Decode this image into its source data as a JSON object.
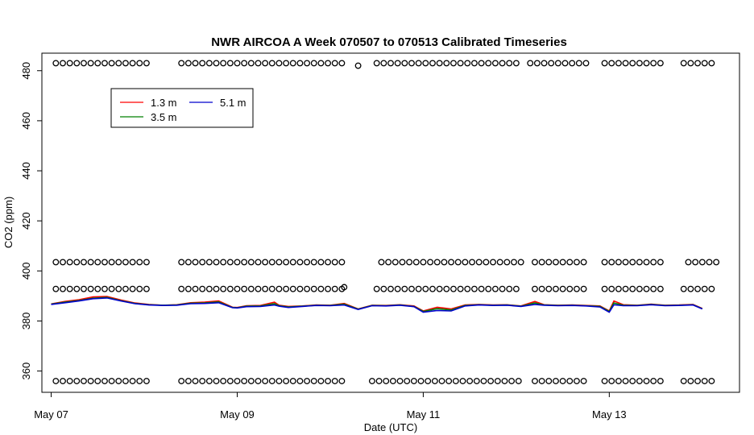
{
  "chart_data": {
    "type": "line",
    "title": "NWR AIRCOA A  Week 070507 to 070513  Calibrated Timeseries",
    "xlabel": "Date (UTC)",
    "ylabel": "CO2 (ppm)",
    "x_unit": "days",
    "xlim": [
      -0.1,
      7.4
    ],
    "ylim": [
      351.5,
      487
    ],
    "x_ticks": [
      {
        "value": 0,
        "label": "May 07"
      },
      {
        "value": 2,
        "label": "May 09"
      },
      {
        "value": 4,
        "label": "May 11"
      },
      {
        "value": 6,
        "label": "May 13"
      }
    ],
    "y_ticks": [
      360,
      380,
      400,
      420,
      440,
      460,
      480
    ],
    "grid": false,
    "legend": {
      "position": "top-left",
      "entries": [
        {
          "name": "1.3 m",
          "color": "#ff0000"
        },
        {
          "name": "5.1 m",
          "color": "#0000cc"
        },
        {
          "name": "3.5 m",
          "color": "#008000"
        }
      ]
    },
    "series": [
      {
        "name": "1.3 m",
        "color": "#ff0000",
        "x": [
          0,
          0.15,
          0.3,
          0.45,
          0.6,
          0.75,
          0.9,
          1.05,
          1.2,
          1.35,
          1.5,
          1.65,
          1.8,
          1.95,
          2.0,
          2.1,
          2.25,
          2.4,
          2.45,
          2.55,
          2.7,
          2.85,
          3.0,
          3.15,
          3.3,
          3.45,
          3.6,
          3.75,
          3.9,
          4.0,
          4.15,
          4.3,
          4.45,
          4.6,
          4.75,
          4.9,
          5.05,
          5.2,
          5.3,
          5.45,
          5.6,
          5.75,
          5.9,
          6.0,
          6.05,
          6.15,
          6.3,
          6.45,
          6.6,
          6.75,
          6.9,
          7.0
        ],
        "values": [
          386.8,
          387.8,
          388.5,
          389.6,
          389.8,
          388.4,
          387.2,
          386.6,
          386.3,
          386.5,
          387.3,
          387.5,
          388.0,
          385.5,
          385.4,
          386.1,
          386.2,
          387.5,
          386.3,
          385.8,
          386.0,
          386.4,
          386.3,
          387.0,
          384.8,
          386.3,
          386.2,
          386.5,
          386.0,
          384.0,
          385.5,
          384.8,
          386.4,
          386.6,
          386.4,
          386.5,
          386.0,
          387.8,
          386.5,
          386.3,
          386.4,
          386.2,
          386.0,
          384.0,
          388.0,
          386.5,
          386.3,
          386.7,
          386.3,
          386.4,
          386.6,
          385.0
        ]
      },
      {
        "name": "3.5 m",
        "color": "#008000",
        "x": [
          0,
          0.15,
          0.3,
          0.45,
          0.6,
          0.75,
          0.9,
          1.05,
          1.2,
          1.35,
          1.5,
          1.65,
          1.8,
          1.95,
          2.0,
          2.1,
          2.25,
          2.4,
          2.45,
          2.55,
          2.7,
          2.85,
          3.0,
          3.15,
          3.3,
          3.45,
          3.6,
          3.75,
          3.9,
          4.0,
          4.15,
          4.3,
          4.45,
          4.6,
          4.75,
          4.9,
          5.05,
          5.2,
          5.3,
          5.45,
          5.6,
          5.75,
          5.9,
          6.0,
          6.05,
          6.15,
          6.3,
          6.45,
          6.6,
          6.75,
          6.9,
          7.0
        ],
        "values": [
          386.7,
          387.5,
          388.2,
          389.1,
          389.4,
          388.1,
          387.0,
          386.5,
          386.3,
          386.4,
          387.1,
          387.2,
          387.6,
          385.4,
          385.3,
          385.9,
          386.0,
          386.9,
          386.1,
          385.6,
          385.9,
          386.3,
          386.2,
          386.7,
          384.7,
          386.2,
          386.1,
          386.4,
          385.8,
          383.8,
          384.9,
          384.4,
          386.2,
          386.5,
          386.3,
          386.4,
          385.9,
          387.2,
          386.4,
          386.2,
          386.3,
          386.1,
          385.8,
          383.8,
          387.2,
          386.3,
          386.2,
          386.6,
          386.2,
          386.3,
          386.5,
          384.9
        ]
      },
      {
        "name": "5.1 m",
        "color": "#0000cc",
        "x": [
          0,
          0.15,
          0.3,
          0.45,
          0.6,
          0.75,
          0.9,
          1.05,
          1.2,
          1.35,
          1.5,
          1.65,
          1.8,
          1.95,
          2.0,
          2.1,
          2.25,
          2.4,
          2.45,
          2.55,
          2.7,
          2.85,
          3.0,
          3.15,
          3.3,
          3.45,
          3.6,
          3.75,
          3.9,
          4.0,
          4.15,
          4.3,
          4.45,
          4.6,
          4.75,
          4.9,
          5.05,
          5.2,
          5.3,
          5.45,
          5.6,
          5.75,
          5.9,
          6.0,
          6.05,
          6.15,
          6.3,
          6.45,
          6.6,
          6.75,
          6.9,
          7.0
        ],
        "values": [
          386.6,
          387.3,
          388.0,
          388.9,
          389.2,
          388.0,
          386.9,
          386.4,
          386.2,
          386.3,
          386.9,
          387.0,
          387.3,
          385.3,
          385.2,
          385.7,
          385.8,
          386.4,
          385.9,
          385.4,
          385.8,
          386.2,
          386.1,
          386.4,
          384.6,
          386.1,
          386.0,
          386.3,
          385.7,
          383.5,
          384.2,
          384.0,
          386.0,
          386.4,
          386.2,
          386.3,
          385.8,
          386.6,
          386.3,
          386.1,
          386.2,
          386.0,
          385.6,
          383.5,
          386.5,
          386.1,
          386.1,
          386.5,
          386.1,
          386.2,
          386.4,
          384.8
        ]
      }
    ],
    "marker_rows": [
      {
        "y": 483,
        "segments": [
          [
            0.05,
            1.05
          ],
          [
            1.4,
            3.15
          ],
          [
            3.5,
            5.0
          ],
          [
            5.15,
            5.75
          ],
          [
            5.95,
            6.55
          ],
          [
            6.8,
            7.15
          ]
        ],
        "extra_x": [
          3.3
        ],
        "extra_y": 482
      }
    ],
    "marker_rows_low": [
      {
        "y": 403.5,
        "segments": [
          [
            0.05,
            1.05
          ],
          [
            1.4,
            3.15
          ],
          [
            3.55,
            5.05
          ],
          [
            5.2,
            5.75
          ],
          [
            5.95,
            6.55
          ],
          [
            6.85,
            7.15
          ]
        ]
      },
      {
        "y": 392.8,
        "segments": [
          [
            0.05,
            1.05
          ],
          [
            1.4,
            3.15
          ],
          [
            3.5,
            5.05
          ],
          [
            5.2,
            5.75
          ],
          [
            5.95,
            6.55
          ],
          [
            6.8,
            7.15
          ]
        ],
        "extra_x": [
          3.15
        ],
        "extra_y": 393.5
      },
      {
        "y": 356,
        "segments": [
          [
            0.05,
            1.05
          ],
          [
            1.4,
            3.15
          ],
          [
            3.45,
            5.05
          ],
          [
            5.2,
            5.75
          ],
          [
            5.95,
            6.55
          ],
          [
            6.8,
            7.15
          ]
        ]
      }
    ]
  }
}
